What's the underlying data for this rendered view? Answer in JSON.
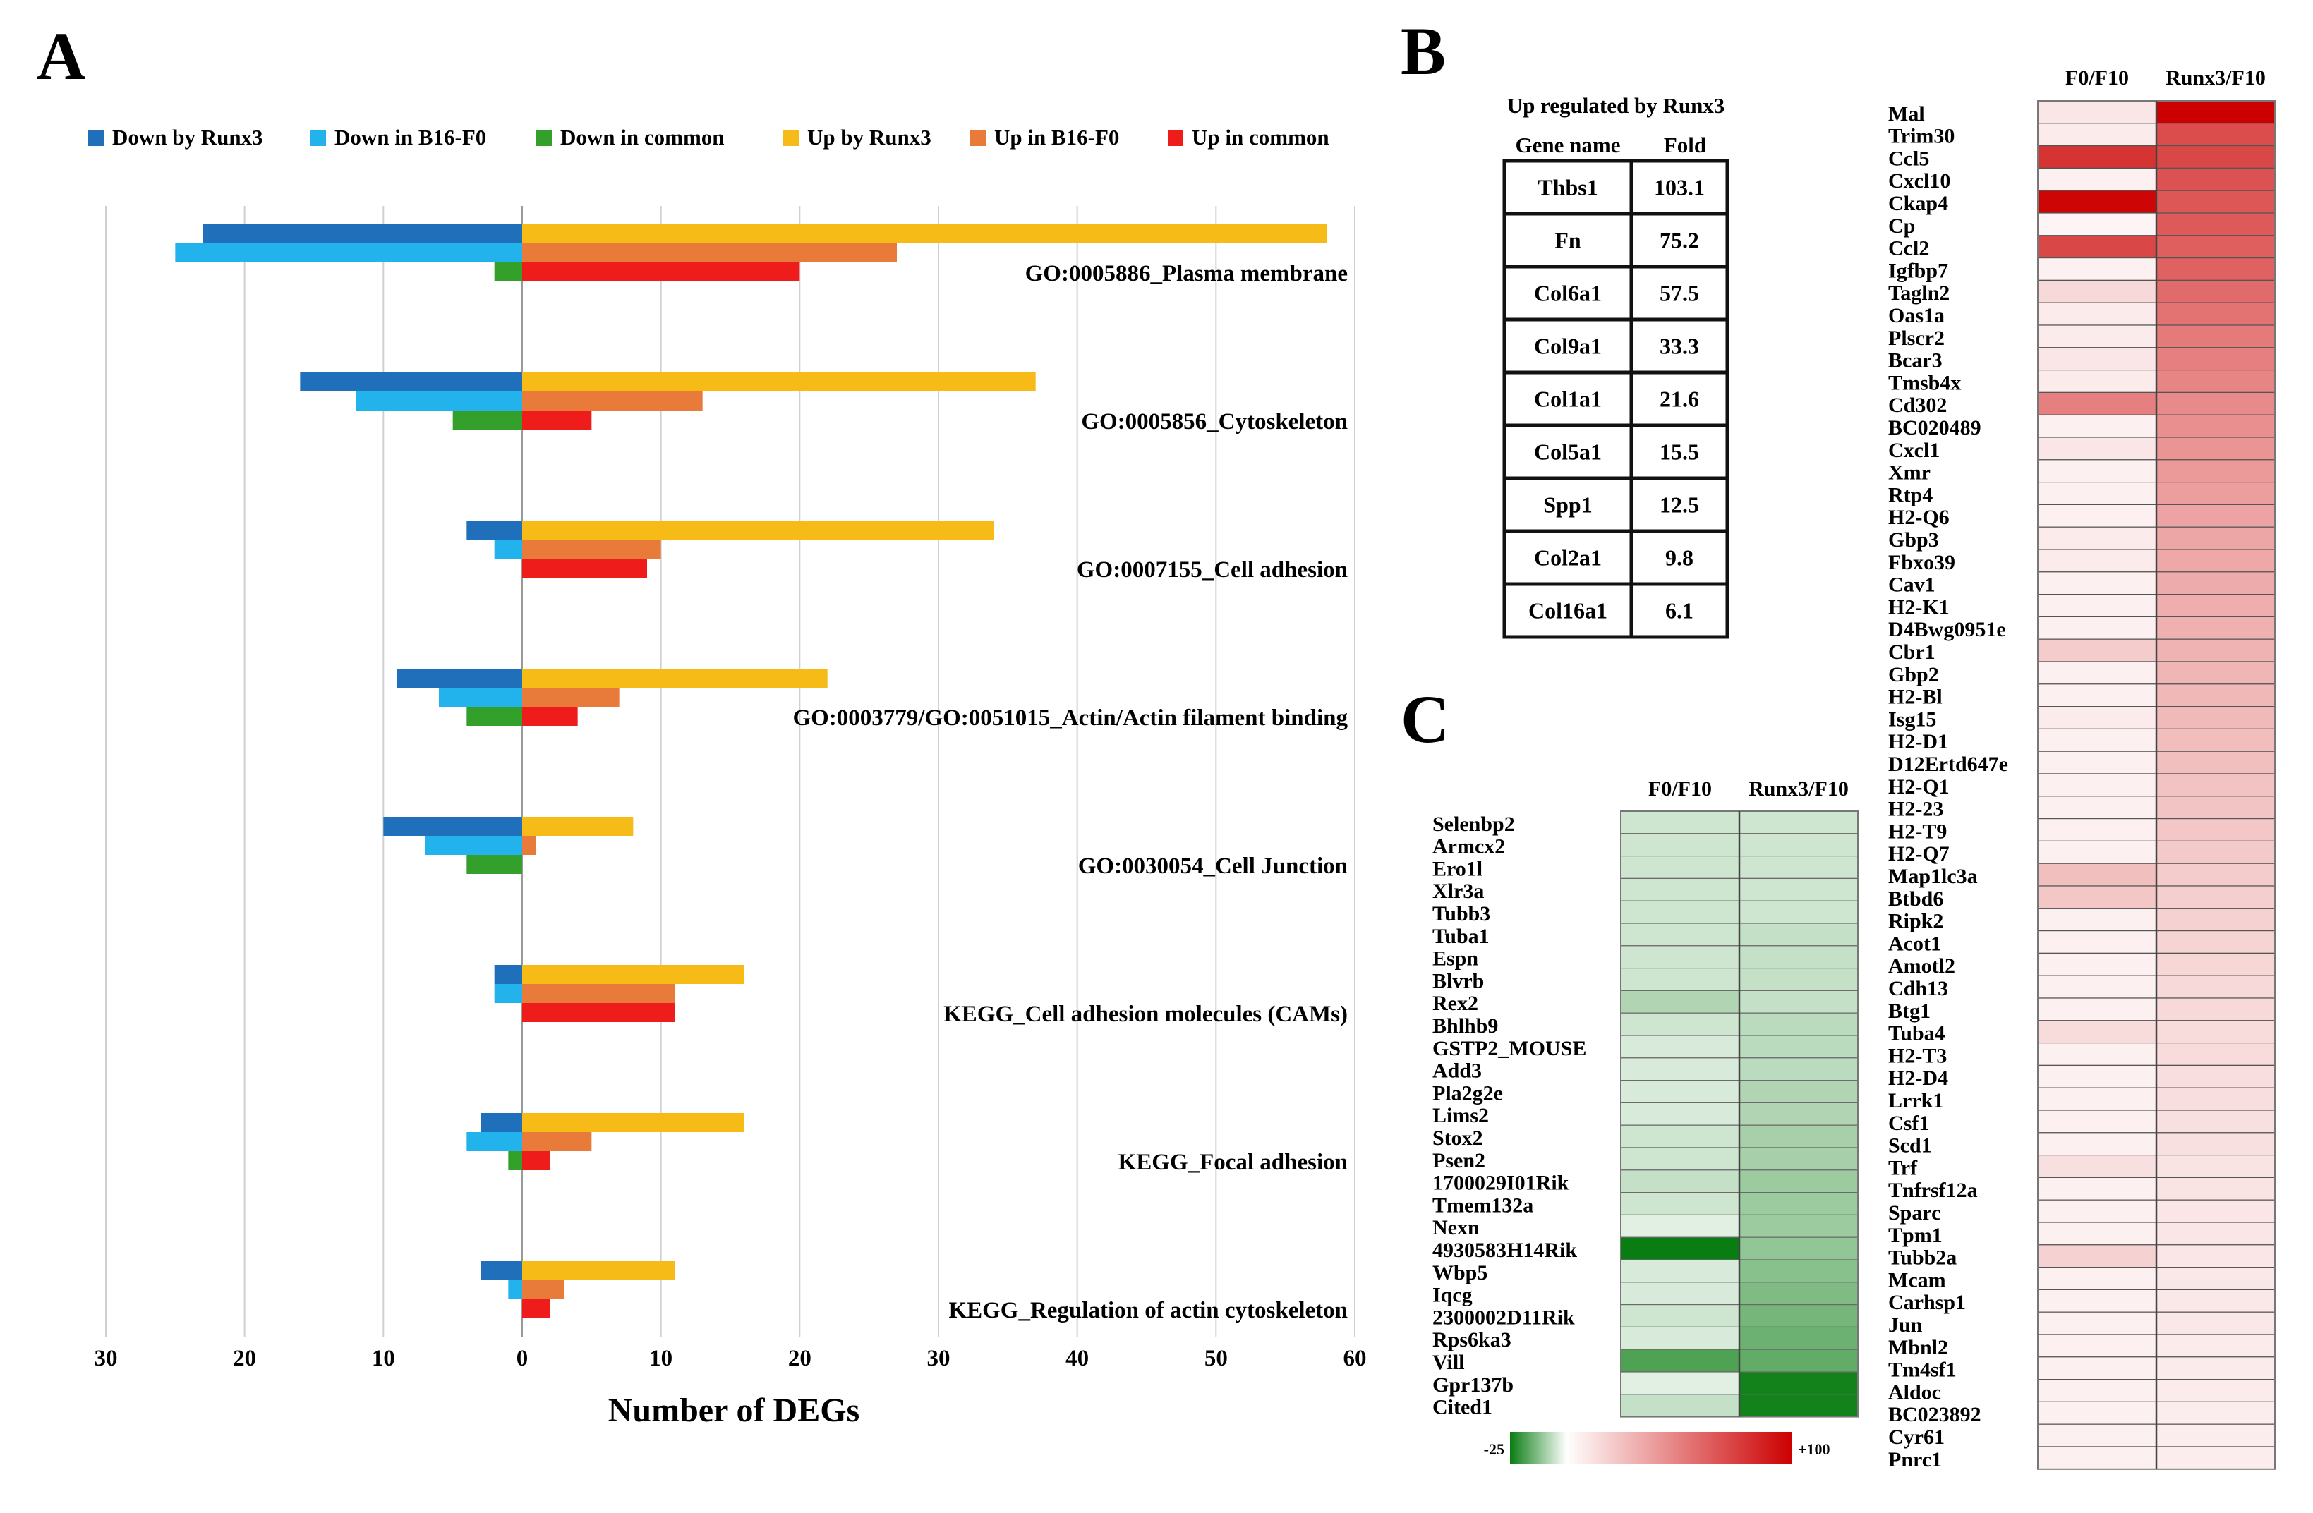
{
  "panel_labels": {
    "a": "A",
    "b": "B",
    "c": "C"
  },
  "colors": {
    "down_runx3": "#1f6fba",
    "down_b16": "#23b3ec",
    "down_common": "#33a02c",
    "up_runx3": "#f7bb17",
    "up_b16": "#e87b3a",
    "up_common": "#ef1c1c",
    "heat_green": "#0a7d12",
    "heat_white": "#ffffff",
    "heat_red": "#cc0000"
  },
  "chart_data": [
    {
      "type": "bar",
      "orientation": "horizontal-diverging",
      "title": "",
      "xlabel": "Number of DEGs",
      "ylabel": "",
      "xlim": [
        -30,
        60
      ],
      "x_ticks": [
        -30,
        -20,
        -10,
        0,
        10,
        20,
        30,
        40,
        50,
        60
      ],
      "x_tick_labels": [
        "30",
        "20",
        "10",
        "0",
        "10",
        "20",
        "30",
        "40",
        "50",
        "60"
      ],
      "legend_position": "top",
      "series": [
        {
          "name": "Down by Runx3",
          "color_key": "down_runx3",
          "direction": "down"
        },
        {
          "name": "Down in B16-F0",
          "color_key": "down_b16",
          "direction": "down"
        },
        {
          "name": "Down in common",
          "color_key": "down_common",
          "direction": "down"
        },
        {
          "name": "Up by Runx3",
          "color_key": "up_runx3",
          "direction": "up"
        },
        {
          "name": "Up in B16-F0",
          "color_key": "up_b16",
          "direction": "up"
        },
        {
          "name": "Up in common",
          "color_key": "up_common",
          "direction": "up"
        }
      ],
      "categories": [
        {
          "label": "GO:0005886_Plasma membrane",
          "down": [
            23,
            25,
            2
          ],
          "up": [
            58,
            27,
            20
          ]
        },
        {
          "label": "GO:0005856_Cytoskeleton",
          "down": [
            16,
            12,
            5
          ],
          "up": [
            37,
            13,
            5
          ]
        },
        {
          "label": "GO:0007155_Cell adhesion",
          "down": [
            4,
            2,
            0
          ],
          "up": [
            34,
            10,
            9
          ]
        },
        {
          "label": "GO:0003779/GO:0051015_Actin/Actin filament binding",
          "down": [
            9,
            6,
            4
          ],
          "up": [
            22,
            7,
            4
          ]
        },
        {
          "label": "GO:0030054_Cell Junction",
          "down": [
            10,
            7,
            4
          ],
          "up": [
            8,
            1,
            0
          ]
        },
        {
          "label": "KEGG_Cell adhesion molecules (CAMs)",
          "down": [
            2,
            2,
            0
          ],
          "up": [
            16,
            11,
            11
          ]
        },
        {
          "label": "KEGG_Focal adhesion",
          "down": [
            3,
            4,
            1
          ],
          "up": [
            16,
            5,
            2
          ]
        },
        {
          "label": "KEGG_Regulation of actin cytoskeleton",
          "down": [
            3,
            1,
            0
          ],
          "up": [
            11,
            3,
            2
          ]
        }
      ]
    },
    {
      "type": "table",
      "title": "Up regulated by Runx3",
      "columns": [
        "Gene name",
        "Fold"
      ],
      "rows": [
        [
          "Thbs1",
          "103.1"
        ],
        [
          "Fn",
          "75.2"
        ],
        [
          "Col6a1",
          "57.5"
        ],
        [
          "Col9a1",
          "33.3"
        ],
        [
          "Col1a1",
          "21.6"
        ],
        [
          "Col5a1",
          "15.5"
        ],
        [
          "Spp1",
          "12.5"
        ],
        [
          "Col2a1",
          "9.8"
        ],
        [
          "Col16a1",
          "6.1"
        ]
      ]
    },
    {
      "type": "heatmap",
      "panel": "B",
      "columns": [
        "F0/F10",
        "Runx3/F10"
      ],
      "rows": [
        {
          "gene": "Mal",
          "values": [
            10,
            100
          ]
        },
        {
          "gene": "Trim30",
          "values": [
            8,
            70
          ]
        },
        {
          "gene": "Ccl5",
          "values": [
            80,
            72
          ]
        },
        {
          "gene": "Cxcl10",
          "values": [
            6,
            68
          ]
        },
        {
          "gene": "Ckap4",
          "values": [
            98,
            66
          ]
        },
        {
          "gene": "Cp",
          "values": [
            4,
            65
          ]
        },
        {
          "gene": "Ccl2",
          "values": [
            72,
            63
          ]
        },
        {
          "gene": "Igfbp7",
          "values": [
            6,
            62
          ]
        },
        {
          "gene": "Tagln2",
          "values": [
            15,
            58
          ]
        },
        {
          "gene": "Oas1a",
          "values": [
            8,
            55
          ]
        },
        {
          "gene": "Plscr2",
          "values": [
            8,
            52
          ]
        },
        {
          "gene": "Bcar3",
          "values": [
            10,
            50
          ]
        },
        {
          "gene": "Tmsb4x",
          "values": [
            8,
            48
          ]
        },
        {
          "gene": "Cd302",
          "values": [
            50,
            46
          ]
        },
        {
          "gene": "BC020489",
          "values": [
            6,
            44
          ]
        },
        {
          "gene": "Cxcl1",
          "values": [
            10,
            42
          ]
        },
        {
          "gene": "Xmr",
          "values": [
            6,
            40
          ]
        },
        {
          "gene": "Rtp4",
          "values": [
            6,
            38
          ]
        },
        {
          "gene": "H2-Q6",
          "values": [
            6,
            36
          ]
        },
        {
          "gene": "Gbp3",
          "values": [
            8,
            35
          ]
        },
        {
          "gene": "Fbxo39",
          "values": [
            8,
            34
          ]
        },
        {
          "gene": "Cav1",
          "values": [
            6,
            33
          ]
        },
        {
          "gene": "H2-K1",
          "values": [
            6,
            32
          ]
        },
        {
          "gene": "D4Bwg0951e",
          "values": [
            6,
            31
          ]
        },
        {
          "gene": "Cbr1",
          "values": [
            20,
            30
          ]
        },
        {
          "gene": "Gbp2",
          "values": [
            6,
            29
          ]
        },
        {
          "gene": "H2-Bl",
          "values": [
            6,
            28
          ]
        },
        {
          "gene": "Isg15",
          "values": [
            8,
            27
          ]
        },
        {
          "gene": "H2-D1",
          "values": [
            6,
            26
          ]
        },
        {
          "gene": "D12Ertd647e",
          "values": [
            6,
            25
          ]
        },
        {
          "gene": "H2-Q1",
          "values": [
            6,
            24
          ]
        },
        {
          "gene": "H2-23",
          "values": [
            6,
            23
          ]
        },
        {
          "gene": "H2-T9",
          "values": [
            6,
            22
          ]
        },
        {
          "gene": "H2-Q7",
          "values": [
            6,
            21
          ]
        },
        {
          "gene": "Map1lc3a",
          "values": [
            25,
            20
          ]
        },
        {
          "gene": "Btbd6",
          "values": [
            22,
            19
          ]
        },
        {
          "gene": "Ripk2",
          "values": [
            6,
            18
          ]
        },
        {
          "gene": "Acot1",
          "values": [
            6,
            17
          ]
        },
        {
          "gene": "Amotl2",
          "values": [
            6,
            16
          ]
        },
        {
          "gene": "Cdh13",
          "values": [
            6,
            15
          ]
        },
        {
          "gene": "Btg1",
          "values": [
            6,
            15
          ]
        },
        {
          "gene": "Tuba4",
          "values": [
            14,
            14
          ]
        },
        {
          "gene": "H2-T3",
          "values": [
            6,
            14
          ]
        },
        {
          "gene": "H2-D4",
          "values": [
            6,
            13
          ]
        },
        {
          "gene": "Lrrk1",
          "values": [
            6,
            13
          ]
        },
        {
          "gene": "Csf1",
          "values": [
            6,
            12
          ]
        },
        {
          "gene": "Scd1",
          "values": [
            6,
            12
          ]
        },
        {
          "gene": "Trf",
          "values": [
            12,
            11
          ]
        },
        {
          "gene": "Tnfrsf12a",
          "values": [
            6,
            11
          ]
        },
        {
          "gene": "Sparc",
          "values": [
            6,
            10
          ]
        },
        {
          "gene": "Tpm1",
          "values": [
            6,
            10
          ]
        },
        {
          "gene": "Tubb2a",
          "values": [
            18,
            10
          ]
        },
        {
          "gene": "Mcam",
          "values": [
            6,
            9
          ]
        },
        {
          "gene": "Carhsp1",
          "values": [
            6,
            9
          ]
        },
        {
          "gene": "Jun",
          "values": [
            6,
            9
          ]
        },
        {
          "gene": "Mbnl2",
          "values": [
            6,
            8
          ]
        },
        {
          "gene": "Tm4sf1",
          "values": [
            6,
            8
          ]
        },
        {
          "gene": "Aldoc",
          "values": [
            6,
            8
          ]
        },
        {
          "gene": "BC023892",
          "values": [
            6,
            7
          ]
        },
        {
          "gene": "Cyr61",
          "values": [
            6,
            7
          ]
        },
        {
          "gene": "Pnrc1",
          "values": [
            6,
            7
          ]
        }
      ]
    },
    {
      "type": "heatmap",
      "panel": "C",
      "columns": [
        "F0/F10",
        "Runx3/F10"
      ],
      "rows": [
        {
          "gene": "Selenbp2",
          "values": [
            -5,
            -5
          ]
        },
        {
          "gene": "Armcx2",
          "values": [
            -5,
            -5
          ]
        },
        {
          "gene": "Ero1l",
          "values": [
            -5,
            -5
          ]
        },
        {
          "gene": "Xlr3a",
          "values": [
            -5,
            -5
          ]
        },
        {
          "gene": "Tubb3",
          "values": [
            -5,
            -5
          ]
        },
        {
          "gene": "Tuba1",
          "values": [
            -5,
            -6
          ]
        },
        {
          "gene": "Espn",
          "values": [
            -5,
            -6
          ]
        },
        {
          "gene": "Blvrb",
          "values": [
            -5,
            -6
          ]
        },
        {
          "gene": "Rex2",
          "values": [
            -8,
            -6
          ]
        },
        {
          "gene": "Bhlhb9",
          "values": [
            -5,
            -7
          ]
        },
        {
          "gene": "GSTP2_MOUSE",
          "values": [
            -4,
            -7
          ]
        },
        {
          "gene": "Add3",
          "values": [
            -4,
            -7
          ]
        },
        {
          "gene": "Pla2g2e",
          "values": [
            -4,
            -8
          ]
        },
        {
          "gene": "Lims2",
          "values": [
            -4,
            -8
          ]
        },
        {
          "gene": "Stox2",
          "values": [
            -5,
            -9
          ]
        },
        {
          "gene": "Psen2",
          "values": [
            -5,
            -9
          ]
        },
        {
          "gene": "1700029I01Rik",
          "values": [
            -6,
            -10
          ]
        },
        {
          "gene": "Tmem132a",
          "values": [
            -5,
            -10
          ]
        },
        {
          "gene": "Nexn",
          "values": [
            -3,
            -10
          ]
        },
        {
          "gene": "4930583H14Rik",
          "values": [
            -25,
            -11
          ]
        },
        {
          "gene": "Wbp5",
          "values": [
            -4,
            -12
          ]
        },
        {
          "gene": "Iqcg",
          "values": [
            -4,
            -13
          ]
        },
        {
          "gene": "2300002D11Rik",
          "values": [
            -5,
            -14
          ]
        },
        {
          "gene": "Rps6ka3",
          "values": [
            -4,
            -15
          ]
        },
        {
          "gene": "Vill",
          "values": [
            -18,
            -16
          ]
        },
        {
          "gene": "Gpr137b",
          "values": [
            -3,
            -24
          ]
        },
        {
          "gene": "Cited1",
          "values": [
            -6,
            -24
          ]
        }
      ]
    },
    {
      "type": "colorbar",
      "min_label": "-25",
      "max_label": "+100",
      "range": [
        -25,
        100
      ]
    }
  ]
}
